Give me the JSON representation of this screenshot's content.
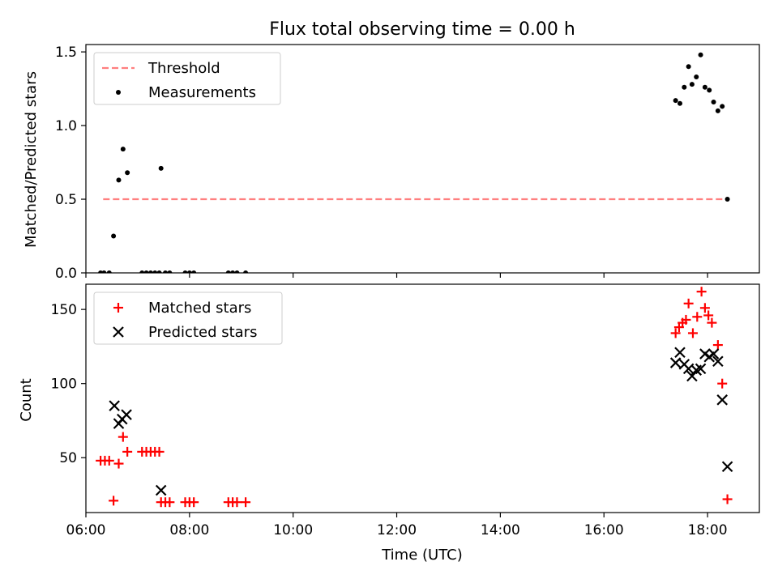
{
  "chart_data": [
    {
      "type": "scatter",
      "title": "Flux total observing time = 0.00 h",
      "ylabel": "Matched/Predicted stars",
      "xlabel": "",
      "xlim": [
        "06:00",
        "19:00"
      ],
      "ylim": [
        0,
        1.55
      ],
      "yticks": [
        0.0,
        0.5,
        1.0,
        1.5
      ],
      "ytick_labels": [
        "0.0",
        "0.5",
        "1.0",
        "1.5"
      ],
      "xtick_labels_visible": false,
      "grid": false,
      "legend": {
        "position": "top-left",
        "entries": [
          "Threshold",
          "Measurements"
        ]
      },
      "threshold": {
        "name": "Threshold",
        "value": 0.5,
        "x_start": "06:20",
        "x_end": "18:24",
        "color": "#ff7f7f",
        "style": "dashed"
      },
      "series": [
        {
          "name": "Measurements",
          "marker": "dot",
          "color": "#000000",
          "points": [
            {
              "x": "06:17",
              "y": 0.0
            },
            {
              "x": "06:21",
              "y": 0.0
            },
            {
              "x": "06:27",
              "y": 0.0
            },
            {
              "x": "06:32",
              "y": 0.25
            },
            {
              "x": "06:38",
              "y": 0.63
            },
            {
              "x": "06:43",
              "y": 0.84
            },
            {
              "x": "06:48",
              "y": 0.68
            },
            {
              "x": "07:05",
              "y": 0.0
            },
            {
              "x": "07:10",
              "y": 0.0
            },
            {
              "x": "07:15",
              "y": 0.0
            },
            {
              "x": "07:20",
              "y": 0.0
            },
            {
              "x": "07:25",
              "y": 0.0
            },
            {
              "x": "07:27",
              "y": 0.71
            },
            {
              "x": "07:32",
              "y": 0.0
            },
            {
              "x": "07:37",
              "y": 0.0
            },
            {
              "x": "07:55",
              "y": 0.0
            },
            {
              "x": "08:00",
              "y": 0.0
            },
            {
              "x": "08:05",
              "y": 0.0
            },
            {
              "x": "08:45",
              "y": 0.0
            },
            {
              "x": "08:50",
              "y": 0.0
            },
            {
              "x": "08:55",
              "y": 0.0
            },
            {
              "x": "09:05",
              "y": 0.0
            },
            {
              "x": "17:23",
              "y": 1.17
            },
            {
              "x": "17:28",
              "y": 1.15
            },
            {
              "x": "17:33",
              "y": 1.26
            },
            {
              "x": "17:38",
              "y": 1.4
            },
            {
              "x": "17:42",
              "y": 1.28
            },
            {
              "x": "17:47",
              "y": 1.33
            },
            {
              "x": "17:52",
              "y": 1.48
            },
            {
              "x": "17:57",
              "y": 1.26
            },
            {
              "x": "18:02",
              "y": 1.24
            },
            {
              "x": "18:07",
              "y": 1.16
            },
            {
              "x": "18:12",
              "y": 1.1
            },
            {
              "x": "18:17",
              "y": 1.13
            },
            {
              "x": "18:23",
              "y": 0.5
            }
          ]
        }
      ]
    },
    {
      "type": "scatter",
      "title": "",
      "ylabel": "Count",
      "xlabel": "Time (UTC)",
      "xlim": [
        "06:00",
        "19:00"
      ],
      "ylim": [
        13,
        167
      ],
      "yticks": [
        50,
        100,
        150
      ],
      "ytick_labels": [
        "50",
        "100",
        "150"
      ],
      "xticks": [
        "06:00",
        "08:00",
        "10:00",
        "12:00",
        "14:00",
        "16:00",
        "18:00"
      ],
      "grid": false,
      "legend": {
        "position": "top-left",
        "entries": [
          "Matched stars",
          "Predicted stars"
        ]
      },
      "series": [
        {
          "name": "Matched stars",
          "marker": "plus",
          "color": "#ff0000",
          "points": [
            {
              "x": "06:17",
              "y": 48
            },
            {
              "x": "06:22",
              "y": 48
            },
            {
              "x": "06:27",
              "y": 48
            },
            {
              "x": "06:32",
              "y": 21
            },
            {
              "x": "06:38",
              "y": 46
            },
            {
              "x": "06:43",
              "y": 64
            },
            {
              "x": "06:48",
              "y": 54
            },
            {
              "x": "07:05",
              "y": 54
            },
            {
              "x": "07:10",
              "y": 54
            },
            {
              "x": "07:15",
              "y": 54
            },
            {
              "x": "07:20",
              "y": 54
            },
            {
              "x": "07:25",
              "y": 54
            },
            {
              "x": "07:27",
              "y": 20
            },
            {
              "x": "07:32",
              "y": 20
            },
            {
              "x": "07:37",
              "y": 20
            },
            {
              "x": "07:55",
              "y": 20
            },
            {
              "x": "08:00",
              "y": 20
            },
            {
              "x": "08:05",
              "y": 20
            },
            {
              "x": "08:45",
              "y": 20
            },
            {
              "x": "08:50",
              "y": 20
            },
            {
              "x": "08:55",
              "y": 20
            },
            {
              "x": "09:05",
              "y": 20
            },
            {
              "x": "17:23",
              "y": 134
            },
            {
              "x": "17:27",
              "y": 138
            },
            {
              "x": "17:31",
              "y": 141
            },
            {
              "x": "17:35",
              "y": 143
            },
            {
              "x": "17:38",
              "y": 154
            },
            {
              "x": "17:43",
              "y": 134
            },
            {
              "x": "17:48",
              "y": 145
            },
            {
              "x": "17:53",
              "y": 162
            },
            {
              "x": "17:57",
              "y": 151
            },
            {
              "x": "18:01",
              "y": 146
            },
            {
              "x": "18:05",
              "y": 141
            },
            {
              "x": "18:12",
              "y": 126
            },
            {
              "x": "18:17",
              "y": 100
            },
            {
              "x": "18:23",
              "y": 22
            }
          ]
        },
        {
          "name": "Predicted stars",
          "marker": "x",
          "color": "#000000",
          "points": [
            {
              "x": "06:33",
              "y": 85
            },
            {
              "x": "06:38",
              "y": 73
            },
            {
              "x": "06:42",
              "y": 76
            },
            {
              "x": "06:47",
              "y": 79
            },
            {
              "x": "07:27",
              "y": 28
            },
            {
              "x": "17:23",
              "y": 114
            },
            {
              "x": "17:28",
              "y": 121
            },
            {
              "x": "17:33",
              "y": 113
            },
            {
              "x": "17:38",
              "y": 110
            },
            {
              "x": "17:42",
              "y": 105
            },
            {
              "x": "17:47",
              "y": 109
            },
            {
              "x": "17:52",
              "y": 110
            },
            {
              "x": "17:57",
              "y": 120
            },
            {
              "x": "18:02",
              "y": 118
            },
            {
              "x": "18:07",
              "y": 120
            },
            {
              "x": "18:12",
              "y": 115
            },
            {
              "x": "18:17",
              "y": 89
            },
            {
              "x": "18:23",
              "y": 44
            }
          ]
        }
      ]
    }
  ]
}
